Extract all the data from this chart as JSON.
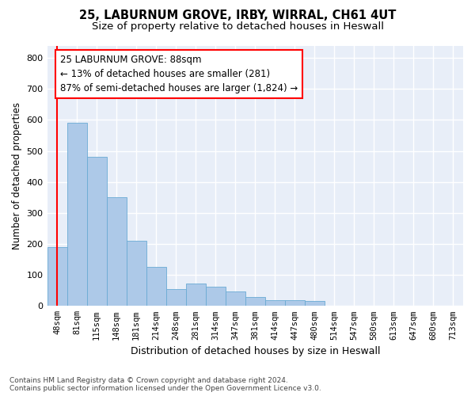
{
  "title1": "25, LABURNUM GROVE, IRBY, WIRRAL, CH61 4UT",
  "title2": "Size of property relative to detached houses in Heswall",
  "xlabel": "Distribution of detached houses by size in Heswall",
  "ylabel": "Number of detached properties",
  "footnote": "Contains HM Land Registry data © Crown copyright and database right 2024.\nContains public sector information licensed under the Open Government Licence v3.0.",
  "categories": [
    "48sqm",
    "81sqm",
    "115sqm",
    "148sqm",
    "181sqm",
    "214sqm",
    "248sqm",
    "281sqm",
    "314sqm",
    "347sqm",
    "381sqm",
    "414sqm",
    "447sqm",
    "480sqm",
    "514sqm",
    "547sqm",
    "580sqm",
    "613sqm",
    "647sqm",
    "680sqm",
    "713sqm"
  ],
  "values": [
    190,
    590,
    480,
    350,
    210,
    125,
    55,
    72,
    62,
    48,
    28,
    18,
    18,
    15,
    0,
    0,
    0,
    0,
    0,
    0,
    0
  ],
  "bar_color": "#adc9e8",
  "bar_edge_color": "#6aaad4",
  "property_line_x": 0.5,
  "property_line_color": "red",
  "annotation_text": "25 LABURNUM GROVE: 88sqm\n← 13% of detached houses are smaller (281)\n87% of semi-detached houses are larger (1,824) →",
  "annotation_box_color": "red",
  "annotation_fontsize": 8.5,
  "ylim": [
    0,
    840
  ],
  "yticks": [
    0,
    100,
    200,
    300,
    400,
    500,
    600,
    700,
    800
  ],
  "background_color": "#e8eef8",
  "grid_color": "white",
  "title1_fontsize": 10.5,
  "title2_fontsize": 9.5,
  "fig_width": 6.0,
  "fig_height": 5.0
}
